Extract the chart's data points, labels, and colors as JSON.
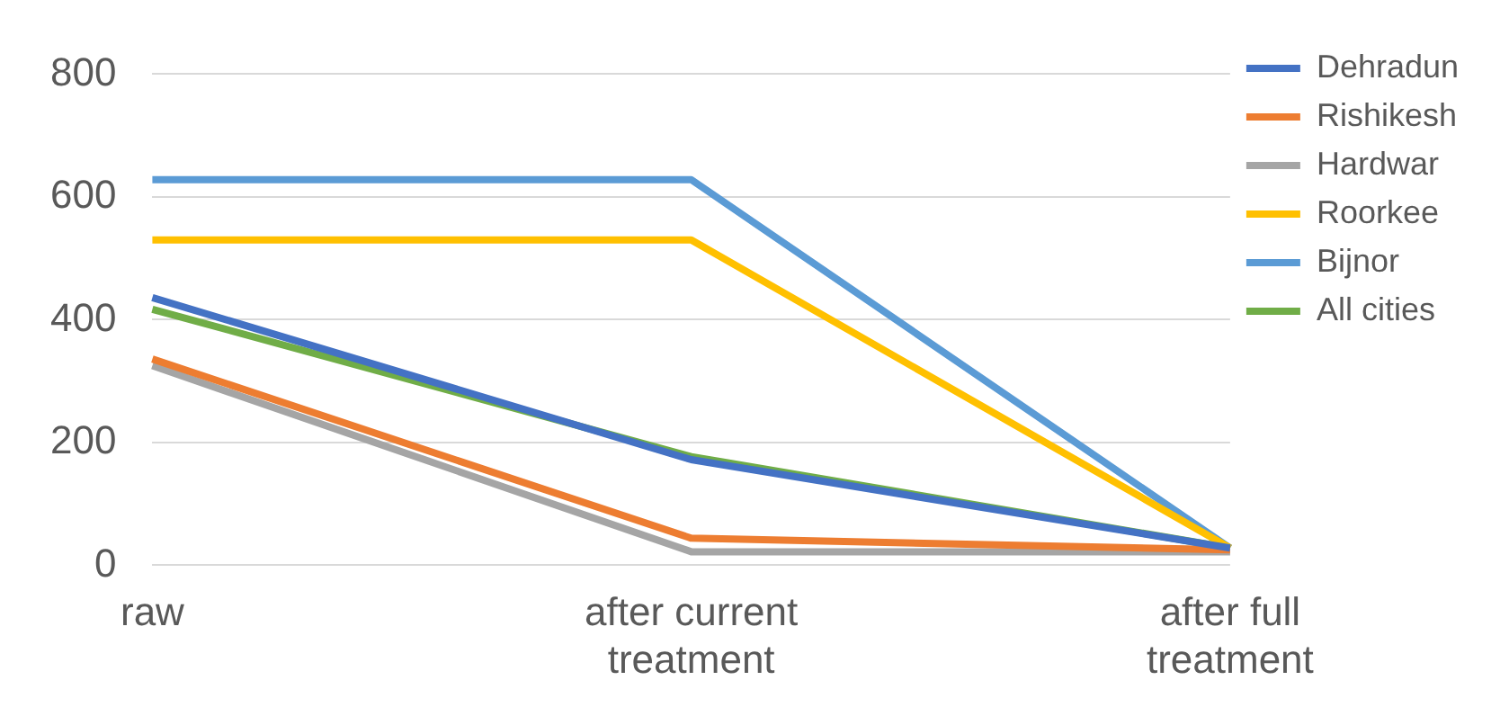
{
  "chart_data": {
    "type": "line",
    "categories": [
      "raw",
      "after current treatment",
      "after full treatment"
    ],
    "series": [
      {
        "name": "Dehradun",
        "color": "#4472c4",
        "values": [
          436,
          172,
          28
        ]
      },
      {
        "name": "Rishikesh",
        "color": "#ed7d31",
        "values": [
          336,
          44,
          25
        ]
      },
      {
        "name": "Hardwar",
        "color": "#a5a5a5",
        "values": [
          325,
          22,
          22
        ]
      },
      {
        "name": "Roorkee",
        "color": "#ffc000",
        "values": [
          530,
          530,
          28
        ]
      },
      {
        "name": "Bijnor",
        "color": "#5b9bd5",
        "values": [
          628,
          628,
          28
        ]
      },
      {
        "name": "All cities",
        "color": "#70ad47",
        "values": [
          417,
          177,
          28
        ]
      }
    ],
    "ylim": [
      0,
      800
    ],
    "yticks": [
      0,
      200,
      400,
      600,
      800
    ],
    "grid": "y",
    "legend": "right",
    "marker": "none",
    "line_style": "solid"
  }
}
